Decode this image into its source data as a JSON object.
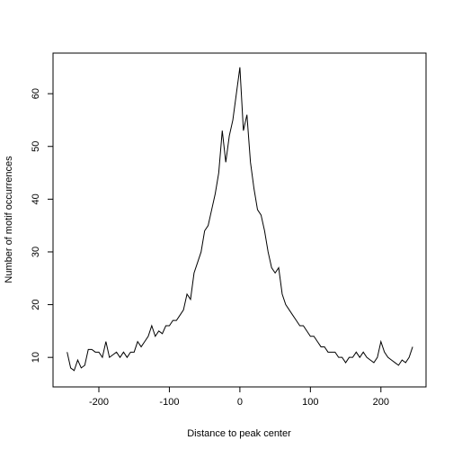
{
  "chart_data": {
    "type": "line",
    "x_label": "Distance to peak center",
    "y_label": "Number of motif occurrences",
    "x": [
      -245,
      -240,
      -235,
      -230,
      -225,
      -220,
      -215,
      -210,
      -205,
      -200,
      -195,
      -190,
      -185,
      -180,
      -175,
      -170,
      -165,
      -160,
      -155,
      -150,
      -145,
      -140,
      -135,
      -130,
      -125,
      -120,
      -115,
      -110,
      -105,
      -100,
      -95,
      -90,
      -85,
      -80,
      -75,
      -70,
      -65,
      -60,
      -55,
      -50,
      -45,
      -40,
      -35,
      -30,
      -25,
      -20,
      -15,
      -10,
      -5,
      0,
      5,
      10,
      15,
      20,
      25,
      30,
      35,
      40,
      45,
      50,
      55,
      60,
      65,
      70,
      75,
      80,
      85,
      90,
      95,
      100,
      105,
      110,
      115,
      120,
      125,
      130,
      135,
      140,
      145,
      150,
      155,
      160,
      165,
      170,
      175,
      180,
      185,
      190,
      195,
      200,
      205,
      210,
      215,
      220,
      225,
      230,
      235,
      240,
      245
    ],
    "series": [
      {
        "color": "#000000",
        "values": [
          11,
          8,
          7.5,
          9.5,
          8,
          8.5,
          11.5,
          11.5,
          11,
          11,
          10,
          13,
          10,
          10.5,
          11,
          10,
          11,
          10,
          11,
          11,
          13,
          12,
          13,
          14,
          16,
          14,
          15,
          14.5,
          16,
          16,
          17,
          17,
          18,
          19,
          22,
          21,
          26,
          28,
          30,
          34,
          35,
          38,
          41,
          45,
          53,
          47,
          52,
          55,
          60,
          65,
          53,
          56,
          47,
          42,
          38,
          37,
          34,
          30,
          27,
          26,
          27,
          22,
          20,
          19,
          18,
          17,
          16,
          16,
          15,
          14,
          14,
          13,
          12,
          12,
          11,
          11,
          11,
          10,
          10,
          9,
          10,
          10,
          11,
          10,
          11,
          10,
          9.5,
          9,
          10,
          13,
          11,
          10,
          9.5,
          9,
          8.5,
          9.5,
          9,
          10,
          12
        ]
      }
    ],
    "xlim": [
      -265,
      264
    ],
    "ylim": [
      4.4,
      67.7
    ],
    "xticks": [
      -200,
      -100,
      0,
      100,
      200
    ],
    "yticks": [
      10,
      20,
      30,
      40,
      50,
      60
    ]
  }
}
